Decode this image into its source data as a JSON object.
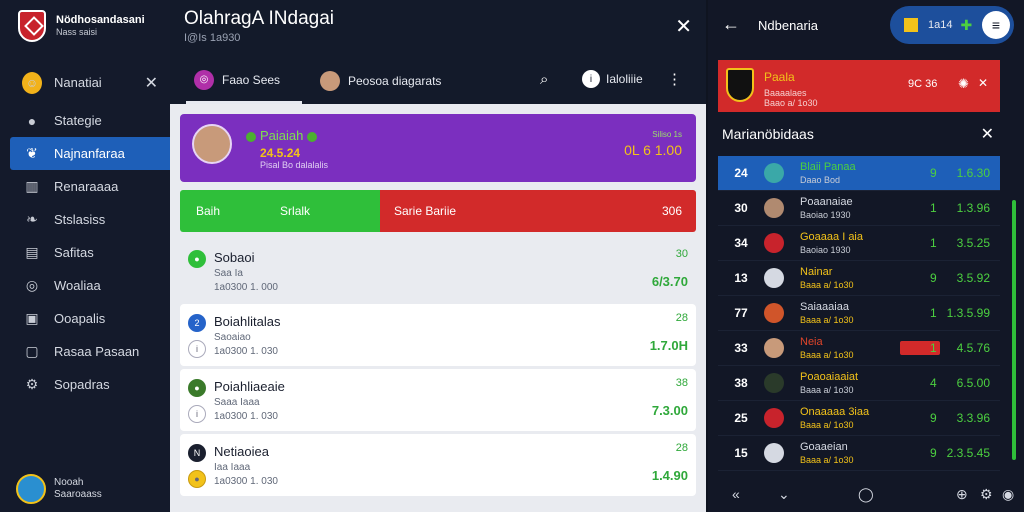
{
  "sidebar": {
    "brand_title": "Nödhosandasani",
    "brand_sub": "Nass saisi",
    "items": [
      {
        "label": "Nanatiai",
        "icon": "smiley-icon"
      },
      {
        "label": "Stategie",
        "icon": "pin-icon"
      },
      {
        "label": "Najnanfaraa",
        "icon": "leaf-icon"
      },
      {
        "label": "Renaraaaa",
        "icon": "bars-icon"
      },
      {
        "label": "Stslasiss",
        "icon": "bird-icon"
      },
      {
        "label": "Safitas",
        "icon": "doc-icon"
      },
      {
        "label": "Woaliaa",
        "icon": "globe-icon"
      },
      {
        "label": "Ooapalis",
        "icon": "window-icon"
      },
      {
        "label": "Rasaa Pasaan",
        "icon": "square-icon"
      },
      {
        "label": "Sopadras",
        "icon": "gear-icon"
      }
    ],
    "user_name": "Nooah",
    "user_sub": "Saaroaass"
  },
  "header": {
    "title": "OlahragA INdagai",
    "subtitle": "I@Is 1a930"
  },
  "tabs": [
    {
      "label": "Faao Sees"
    },
    {
      "label": "Peosoa diagarats"
    }
  ],
  "tab_more_label": "Ialoliiie",
  "hero": {
    "name": "Paiaiah",
    "number": "24.5.24",
    "sub": "Pisal Bo dalalalis",
    "right_top": "Siliso 1s",
    "right_value": "0L 6 1.00"
  },
  "bar": {
    "left_a": "Baih",
    "left_b": "Srlalk",
    "right_label": "Sarie Bariie",
    "right_value": "306"
  },
  "rows": [
    {
      "name": "Sobaoi",
      "meta1": "Saa Ia",
      "meta2": "1a0300 1. 000",
      "num": "30",
      "value": "6/3.70",
      "badge": "#2fbf3a"
    },
    {
      "name": "Boiahlitalas",
      "meta1": "Saoaiao",
      "meta2": "1a0300 1. 030",
      "num": "28",
      "value": "1.7.0H",
      "badge": "#2563c9"
    },
    {
      "name": "Poiahliaeaie",
      "meta1": "Saaa Iaaa",
      "meta2": "1a0300 1. 030",
      "num": "38",
      "value": "7.3.00",
      "badge": "#3a7a2a"
    },
    {
      "name": "Netiaoiea",
      "meta1": "Iaa Iaaa",
      "meta2": "1a0300 1. 030",
      "num": "28",
      "value": "1.4.90",
      "badge": "#1a1f2e"
    }
  ],
  "right": {
    "title": "Ndbenaria",
    "pill_text": "1a14",
    "alert_title": "Paala",
    "alert_sub_a": "Baaaalaes",
    "alert_sub_b": "Baao a/ 1o30",
    "alert_score": "9C 36",
    "section_title": "Marianöbidaas",
    "list": [
      {
        "rank": "24",
        "name": "Blaii Panaa",
        "sub": "Daao Bod",
        "count": "9",
        "value": "1.6.30",
        "ava": "#3aa8a8",
        "active": true
      },
      {
        "rank": "30",
        "name": "Poaanaiae",
        "sub": "Baoiao 1930",
        "count": "1",
        "value": "1.3.96",
        "ava": "#b08a70"
      },
      {
        "rank": "34",
        "name": "Goaaaa I aia",
        "sub": "Baoiao 1930",
        "count": "1",
        "value": "3.5.25",
        "ava": "#c8232c"
      },
      {
        "rank": "13",
        "name": "Nainar",
        "sub": "Baaa a/ 1o30",
        "count": "9",
        "value": "3.5.92",
        "ava": "#d5d9e2"
      },
      {
        "rank": "77",
        "name": "Saiaaaiaa",
        "sub": "Baaa a/ 1o30",
        "count": "1",
        "value": "1.3.5.99",
        "ava": "#d0552a"
      },
      {
        "rank": "33",
        "name": "Neia",
        "sub": "Baaa a/ 1o30",
        "count": "1",
        "value": "4.5.76",
        "ava": "#c89a7a",
        "tag": true
      },
      {
        "rank": "38",
        "name": "Poaoaiaaiat",
        "sub": "Baaa a/ 1o30",
        "count": "4",
        "value": "6.5.00",
        "ava": "#2a3a2a"
      },
      {
        "rank": "25",
        "name": "Onaaaaa 3iaa",
        "sub": "Baaa a/ 1o30",
        "count": "9",
        "value": "3.3.96",
        "ava": "#c8232c"
      },
      {
        "rank": "15",
        "name": "Goaaeian",
        "sub": "Baaa a/ 1o30",
        "count": "9",
        "value": "2.3.5.45",
        "ava": "#d5d9e2"
      }
    ]
  }
}
